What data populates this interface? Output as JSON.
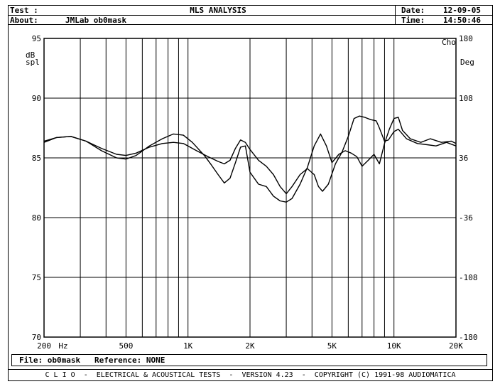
{
  "header": {
    "test_label": "Test :",
    "title": "MLS ANALYSIS",
    "about_label": "About:",
    "about_value": "JMLab ob0mask",
    "date_label": "Date:",
    "date_value": "12-09-05",
    "time_label": "Time:",
    "time_value": "14:50:46"
  },
  "file_bar": {
    "file_label": "File:",
    "file_value": "ob0mask",
    "reference_label": "Reference:",
    "reference_value": "NONE"
  },
  "footer": {
    "text": "C L I O  -  ELECTRICAL & ACOUSTICAL TESTS  -  VERSION 4.23  -  COPYRIGHT (C) 1991-98 AUDIOMATICA"
  },
  "chart_data": {
    "type": "line",
    "title": "",
    "xlabel": "Hz",
    "ylabel": "dB spl",
    "y2label": "Deg",
    "y2_corner_label": "Cho",
    "x_scale": "log",
    "xlim": [
      200,
      20000
    ],
    "ylim": [
      70,
      95
    ],
    "y2lim": [
      -180,
      180
    ],
    "grid": true,
    "x_tick_labels": [
      {
        "value": 200,
        "label": "200"
      },
      {
        "value": 500,
        "label": "500"
      },
      {
        "value": 1000,
        "label": "1K"
      },
      {
        "value": 2000,
        "label": "2K"
      },
      {
        "value": 5000,
        "label": "5K"
      },
      {
        "value": 10000,
        "label": "10K"
      },
      {
        "value": 20000,
        "label": "20K"
      }
    ],
    "x_grid": [
      300,
      400,
      500,
      600,
      700,
      800,
      900,
      1000,
      2000,
      3000,
      4000,
      5000,
      6000,
      7000,
      8000,
      9000,
      10000
    ],
    "y_ticks": [
      95,
      90,
      85,
      80,
      75,
      70
    ],
    "y2_ticks": [
      180,
      108,
      36,
      -36,
      -108,
      -180
    ],
    "series": [
      {
        "values": [
          [
            200,
            86.3
          ],
          [
            230,
            86.7
          ],
          [
            270,
            86.8
          ],
          [
            320,
            86.4
          ],
          [
            380,
            85.8
          ],
          [
            450,
            85.3
          ],
          [
            500,
            85.2
          ],
          [
            560,
            85.4
          ],
          [
            650,
            85.9
          ],
          [
            750,
            86.2
          ],
          [
            850,
            86.3
          ],
          [
            950,
            86.2
          ],
          [
            1100,
            85.6
          ],
          [
            1250,
            85.1
          ],
          [
            1400,
            84.7
          ],
          [
            1500,
            84.5
          ],
          [
            1600,
            84.8
          ],
          [
            1700,
            85.8
          ],
          [
            1800,
            86.5
          ],
          [
            1900,
            86.3
          ],
          [
            2000,
            85.7
          ],
          [
            2200,
            84.8
          ],
          [
            2400,
            84.3
          ],
          [
            2600,
            83.6
          ],
          [
            2800,
            82.6
          ],
          [
            3000,
            82.0
          ],
          [
            3200,
            82.6
          ],
          [
            3500,
            83.6
          ],
          [
            3800,
            84.1
          ],
          [
            4100,
            83.6
          ],
          [
            4300,
            82.6
          ],
          [
            4500,
            82.2
          ],
          [
            4800,
            82.8
          ],
          [
            5200,
            84.5
          ],
          [
            5600,
            85.5
          ],
          [
            6000,
            86.8
          ],
          [
            6400,
            88.3
          ],
          [
            6800,
            88.5
          ],
          [
            7200,
            88.4
          ],
          [
            7700,
            88.2
          ],
          [
            8200,
            88.1
          ],
          [
            8500,
            87.5
          ],
          [
            9000,
            86.4
          ],
          [
            9400,
            86.5
          ],
          [
            10000,
            87.2
          ],
          [
            10500,
            87.4
          ],
          [
            11500,
            86.6
          ],
          [
            13000,
            86.2
          ],
          [
            14500,
            86.1
          ],
          [
            16000,
            86.0
          ],
          [
            18000,
            86.3
          ],
          [
            20000,
            86.0
          ]
        ]
      },
      {
        "values": [
          [
            200,
            86.4
          ],
          [
            230,
            86.7
          ],
          [
            270,
            86.8
          ],
          [
            320,
            86.4
          ],
          [
            380,
            85.6
          ],
          [
            450,
            85.0
          ],
          [
            500,
            84.9
          ],
          [
            560,
            85.2
          ],
          [
            650,
            86.0
          ],
          [
            750,
            86.6
          ],
          [
            850,
            87.0
          ],
          [
            950,
            86.9
          ],
          [
            1050,
            86.3
          ],
          [
            1200,
            85.2
          ],
          [
            1300,
            84.4
          ],
          [
            1400,
            83.6
          ],
          [
            1500,
            82.9
          ],
          [
            1600,
            83.3
          ],
          [
            1700,
            84.6
          ],
          [
            1800,
            85.9
          ],
          [
            1900,
            86.0
          ],
          [
            2000,
            83.8
          ],
          [
            2200,
            82.8
          ],
          [
            2400,
            82.6
          ],
          [
            2600,
            81.8
          ],
          [
            2800,
            81.4
          ],
          [
            3000,
            81.3
          ],
          [
            3200,
            81.6
          ],
          [
            3500,
            82.8
          ],
          [
            3800,
            84.2
          ],
          [
            4100,
            86.0
          ],
          [
            4400,
            87.0
          ],
          [
            4700,
            86.0
          ],
          [
            5000,
            84.6
          ],
          [
            5400,
            85.3
          ],
          [
            5800,
            85.6
          ],
          [
            6200,
            85.4
          ],
          [
            6600,
            85.1
          ],
          [
            7000,
            84.3
          ],
          [
            7500,
            84.8
          ],
          [
            8000,
            85.3
          ],
          [
            8500,
            84.5
          ],
          [
            9000,
            86.2
          ],
          [
            9500,
            87.4
          ],
          [
            10000,
            88.3
          ],
          [
            10500,
            88.4
          ],
          [
            11000,
            87.3
          ],
          [
            12000,
            86.6
          ],
          [
            13500,
            86.3
          ],
          [
            15000,
            86.6
          ],
          [
            17000,
            86.3
          ],
          [
            19000,
            86.4
          ],
          [
            20000,
            86.2
          ]
        ]
      }
    ]
  }
}
